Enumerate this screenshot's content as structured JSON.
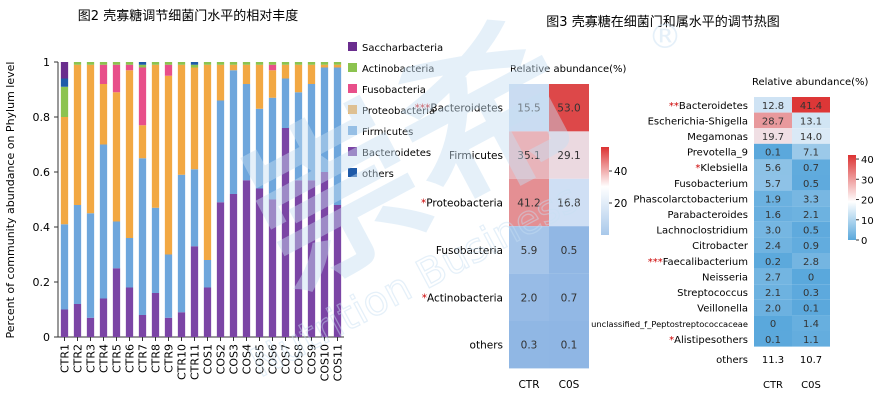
{
  "colors": {
    "Saccharbacteria": "#6a2d8e",
    "Actinobacteria": "#8cc34f",
    "Fusobacteria": "#e84f8a",
    "Proteobacteria": "#f2a843",
    "Firmicutes": "#6ea6dc",
    "Bacteroidetes": "#7b45a5",
    "others": "#1f5aa8",
    "heat_low": "#a8c8ea",
    "heat_mid": "#ffffff",
    "heat_high": "#dc3232",
    "star": "#cc0000",
    "watermark": "#c7dff2"
  },
  "watermark": {
    "brand": "崇希",
    "sub": "Nutrition Business",
    "mark": "®"
  },
  "chart_data": [
    {
      "type": "bar",
      "stacked": true,
      "title": "图2 壳寡糖调节细菌门水平的相对丰度",
      "ylabel": "Percent of community abundance on Phylum level",
      "ylim": [
        0,
        1
      ],
      "yticks": [
        "0",
        "0.2",
        "0.4",
        "0.6",
        "0.8",
        "1"
      ],
      "legend_position": "right",
      "categories": [
        "CTR1",
        "CTR2",
        "CTR3",
        "CTR4",
        "CTR5",
        "CTR6",
        "CTR7",
        "CTR8",
        "CTR9",
        "CTR10",
        "CTR11",
        "COS1",
        "COS2",
        "COS3",
        "COS4",
        "COS5",
        "COS6",
        "COS7",
        "COS8",
        "COS9",
        "COS10",
        "COS11"
      ],
      "series": [
        {
          "name": "Bacteroidetes",
          "values": [
            0.1,
            0.12,
            0.07,
            0.14,
            0.25,
            0.18,
            0.08,
            0.16,
            0.07,
            0.09,
            0.33,
            0.18,
            0.49,
            0.52,
            0.57,
            0.54,
            0.5,
            0.76,
            0.57,
            0.57,
            0.6,
            0.48
          ]
        },
        {
          "name": "Firmicutes",
          "values": [
            0.31,
            0.36,
            0.38,
            0.56,
            0.17,
            0.18,
            0.57,
            0.31,
            0.23,
            0.5,
            0.28,
            0.1,
            0.37,
            0.45,
            0.35,
            0.29,
            0.37,
            0.18,
            0.32,
            0.35,
            0.38,
            0.5
          ]
        },
        {
          "name": "Proteobacteria",
          "values": [
            0.39,
            0.51,
            0.54,
            0.22,
            0.47,
            0.61,
            0.12,
            0.52,
            0.65,
            0.4,
            0.37,
            0.71,
            0.13,
            0.02,
            0.07,
            0.16,
            0.1,
            0.05,
            0.1,
            0.07,
            0.01,
            0.01
          ]
        },
        {
          "name": "Fusobacteria",
          "values": [
            0.0,
            0.0,
            0.0,
            0.07,
            0.1,
            0.02,
            0.21,
            0.0,
            0.04,
            0.0,
            0.0,
            0.0,
            0.0,
            0.0,
            0.0,
            0.0,
            0.02,
            0.0,
            0.0,
            0.0,
            0.0,
            0.0
          ]
        },
        {
          "name": "Actinobacteria",
          "values": [
            0.11,
            0.01,
            0.01,
            0.01,
            0.01,
            0.01,
            0.01,
            0.01,
            0.01,
            0.01,
            0.01,
            0.01,
            0.01,
            0.01,
            0.01,
            0.01,
            0.01,
            0.01,
            0.01,
            0.01,
            0.01,
            0.01
          ]
        },
        {
          "name": "others",
          "values": [
            0.03,
            0.0,
            0.0,
            0.0,
            0.0,
            0.0,
            0.01,
            0.0,
            0.0,
            0.0,
            0.01,
            0.0,
            0.0,
            0.0,
            0.0,
            0.0,
            0.0,
            0.0,
            0.0,
            0.0,
            0.0,
            0.0
          ]
        },
        {
          "name": "Saccharbacteria",
          "values": [
            0.06,
            0.0,
            0.0,
            0.0,
            0.0,
            0.0,
            0.0,
            0.0,
            0.0,
            0.0,
            0.0,
            0.0,
            0.0,
            0.0,
            0.0,
            0.0,
            0.0,
            0.0,
            0.0,
            0.0,
            0.0,
            0.0
          ]
        }
      ],
      "legend": [
        "Saccharbacteria",
        "Actinobacteria",
        "Fusobacteria",
        "Proteobacteria",
        "Firmicutes",
        "Bacteroidetes",
        "others"
      ]
    },
    {
      "type": "heatmap",
      "level": "phylum",
      "subtitle": "Relative abundance(%)",
      "columns": [
        "CTR",
        "C0S"
      ],
      "rows": [
        {
          "label": "Bacteroidetes",
          "stars": "***",
          "values": [
            15.5,
            53.0
          ]
        },
        {
          "label": "Firmicutes",
          "stars": "",
          "values": [
            35.1,
            29.1
          ]
        },
        {
          "label": "Proteobacteria",
          "stars": "*",
          "values": [
            41.2,
            16.8
          ]
        },
        {
          "label": "Fusobacteria",
          "stars": "",
          "values": [
            5.9,
            0.5
          ]
        },
        {
          "label": "Actinobacteria",
          "stars": "*",
          "values": [
            2.0,
            0.7
          ]
        },
        {
          "label": "others",
          "stars": "",
          "values": [
            0.3,
            0.1
          ]
        }
      ],
      "scale_ticks": [
        "40",
        "20"
      ],
      "scale_range": [
        0,
        55
      ]
    },
    {
      "type": "heatmap",
      "level": "genus",
      "title": "图3 壳寡糖在细菌门和属水平的调节热图",
      "subtitle": "Relative abundance(%)",
      "columns": [
        "CTR",
        "C0S"
      ],
      "rows": [
        {
          "label": "Bacteroidetes",
          "stars": "**",
          "values": [
            12.8,
            41.4
          ]
        },
        {
          "label": "Escherichia-Shigella",
          "stars": "",
          "values": [
            28.7,
            13.1
          ]
        },
        {
          "label": "Megamonas",
          "stars": "",
          "values": [
            19.7,
            14.0
          ]
        },
        {
          "label": "Prevotella_9",
          "stars": "",
          "values": [
            0.1,
            7.1
          ]
        },
        {
          "label": "Klebsiella",
          "stars": "*",
          "values": [
            5.6,
            0.7
          ]
        },
        {
          "label": "Fusobacterium",
          "stars": "",
          "values": [
            5.7,
            0.5
          ]
        },
        {
          "label": "Phascolarctobacterium",
          "stars": "",
          "values": [
            1.9,
            3.3
          ]
        },
        {
          "label": "Parabacteroides",
          "stars": "",
          "values": [
            1.6,
            2.1
          ]
        },
        {
          "label": "Lachnoclostridium",
          "stars": "",
          "values": [
            3.0,
            0.5
          ]
        },
        {
          "label": "Citrobacter",
          "stars": "",
          "values": [
            2.4,
            0.9
          ]
        },
        {
          "label": "Faecalibacterium",
          "stars": "***",
          "values": [
            0.2,
            2.8
          ]
        },
        {
          "label": "Neisseria",
          "stars": "",
          "values": [
            2.7,
            0
          ]
        },
        {
          "label": "Streptococcus",
          "stars": "",
          "values": [
            2.1,
            0.3
          ]
        },
        {
          "label": "Veillonella",
          "stars": "",
          "values": [
            2.0,
            0.1
          ]
        },
        {
          "label": "unclassified_f_Peptostreptococcaceae",
          "stars": "",
          "values": [
            0,
            1.4
          ]
        },
        {
          "label": "Alistipesothers",
          "stars": "*",
          "values": [
            0.1,
            1.1
          ]
        }
      ],
      "others": {
        "label": "others",
        "values": [
          11.3,
          10.7
        ]
      },
      "scale_ticks": [
        "40",
        "30",
        "20",
        "10",
        "0"
      ],
      "scale_range": [
        0,
        42
      ]
    }
  ]
}
